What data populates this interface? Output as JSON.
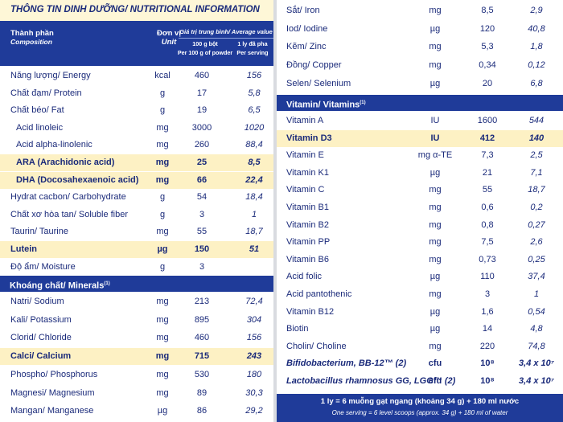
{
  "left": {
    "title": "THÔNG TIN DINH DƯỠNG/ NUTRITIONAL INFORMATION",
    "header": {
      "composition_vi": "Thành phần",
      "composition_en": "Composition",
      "unit_vi": "Đơn vị",
      "unit_en": "Unit",
      "average": "Giá trị trung bình/ Average value",
      "col1_vi": "100 g bột",
      "col1_en": "Per 100 g of powder",
      "col2_vi": "1 ly đã pha",
      "col2_en": "Per serving"
    },
    "rows": [
      {
        "name": "Năng lượng/ Energy",
        "unit": "kcal",
        "per100": "460",
        "serving": "156"
      },
      {
        "name": "Chất đạm/ Protein",
        "unit": "g",
        "per100": "17",
        "serving": "5,8"
      },
      {
        "name": "Chất béo/ Fat",
        "unit": "g",
        "per100": "19",
        "serving": "6,5"
      },
      {
        "name": "Acid linoleic",
        "unit": "mg",
        "per100": "3000",
        "serving": "1020"
      },
      {
        "name": "Acid alpha-linolenic",
        "unit": "mg",
        "per100": "260",
        "serving": "88,4"
      },
      {
        "name": "ARA (Arachidonic acid)",
        "unit": "mg",
        "per100": "25",
        "serving": "8,5"
      },
      {
        "name": "DHA (Docosahexaenoic acid)",
        "unit": "mg",
        "per100": "66",
        "serving": "22,4"
      },
      {
        "name": "Hydrat cacbon/ Carbohydrate",
        "unit": "g",
        "per100": "54",
        "serving": "18,4"
      },
      {
        "name": "Chất xơ hòa tan/ Soluble fiber",
        "unit": "g",
        "per100": "3",
        "serving": "1"
      },
      {
        "name": "Taurin/ Taurine",
        "unit": "mg",
        "per100": "55",
        "serving": "18,7"
      },
      {
        "name": "Lutein",
        "unit": "µg",
        "per100": "150",
        "serving": "51"
      },
      {
        "name": "Độ ẩm/ Moisture",
        "unit": "g",
        "per100": "3",
        "serving": ""
      }
    ],
    "minerals_title": "Khoáng chất/ Minerals",
    "minerals_note": "(1)",
    "minerals": [
      {
        "name": "Natri/ Sodium",
        "unit": "mg",
        "per100": "213",
        "serving": "72,4"
      },
      {
        "name": "Kali/ Potassium",
        "unit": "mg",
        "per100": "895",
        "serving": "304"
      },
      {
        "name": "Clorid/ Chloride",
        "unit": "mg",
        "per100": "460",
        "serving": "156"
      },
      {
        "name": "Calci/ Calcium",
        "unit": "mg",
        "per100": "715",
        "serving": "243"
      },
      {
        "name": "Phospho/ Phosphorus",
        "unit": "mg",
        "per100": "530",
        "serving": "180"
      },
      {
        "name": "Magnesi/ Magnesium",
        "unit": "mg",
        "per100": "89",
        "serving": "30,3"
      },
      {
        "name": "Mangan/ Manganese",
        "unit": "µg",
        "per100": "86",
        "serving": "29,2"
      }
    ]
  },
  "right": {
    "rows_top": [
      {
        "name": "Sắt/ Iron",
        "unit": "mg",
        "per100": "8,5",
        "serving": "2,9"
      },
      {
        "name": "Iod/ Iodine",
        "unit": "µg",
        "per100": "120",
        "serving": "40,8"
      },
      {
        "name": "Kẽm/ Zinc",
        "unit": "mg",
        "per100": "5,3",
        "serving": "1,8"
      },
      {
        "name": "Đồng/ Copper",
        "unit": "mg",
        "per100": "0,34",
        "serving": "0,12"
      },
      {
        "name": "Selen/ Selenium",
        "unit": "µg",
        "per100": "20",
        "serving": "6,8"
      }
    ],
    "vitamins_title": "Vitamin/ Vitamins",
    "vitamins_note": "(1)",
    "vitamins": [
      {
        "name": "Vitamin A",
        "unit": "IU",
        "per100": "1600",
        "serving": "544"
      },
      {
        "name": "Vitamin D3",
        "unit": "IU",
        "per100": "412",
        "serving": "140"
      },
      {
        "name": "Vitamin E",
        "unit": "mg α-TE",
        "per100": "7,3",
        "serving": "2,5"
      },
      {
        "name": "Vitamin K1",
        "unit": "µg",
        "per100": "21",
        "serving": "7,1"
      },
      {
        "name": "Vitamin C",
        "unit": "mg",
        "per100": "55",
        "serving": "18,7"
      },
      {
        "name": "Vitamin B1",
        "unit": "mg",
        "per100": "0,6",
        "serving": "0,2"
      },
      {
        "name": "Vitamin B2",
        "unit": "mg",
        "per100": "0,8",
        "serving": "0,27"
      },
      {
        "name": "Vitamin PP",
        "unit": "mg",
        "per100": "7,5",
        "serving": "2,6"
      },
      {
        "name": "Vitamin B6",
        "unit": "mg",
        "per100": "0,73",
        "serving": "0,25"
      },
      {
        "name": "Acid folic",
        "unit": "µg",
        "per100": "110",
        "serving": "37,4"
      },
      {
        "name": "Acid pantothenic",
        "unit": "mg",
        "per100": "3",
        "serving": "1"
      },
      {
        "name": "Vitamin B12",
        "unit": "µg",
        "per100": "1,6",
        "serving": "0,54"
      },
      {
        "name": "Biotin",
        "unit": "µg",
        "per100": "14",
        "serving": "4,8"
      },
      {
        "name": "Cholin/ Choline",
        "unit": "mg",
        "per100": "220",
        "serving": "74,8"
      },
      {
        "name": "Bifidobacterium, BB-12™ (2)",
        "unit": "cfu",
        "per100": "10⁸",
        "serving": "3,4 x 10⁷"
      },
      {
        "name": "Lactobacillus rhamnosus GG, LGG™ (2)",
        "unit": "cfu",
        "per100": "10⁸",
        "serving": "3,4 x 10⁷"
      }
    ],
    "footer_vi": "1 ly = 6 muỗng gạt ngang (khoảng 34 g) + 180 ml nước",
    "footer_en": "One serving = 6 level scoops (approx. 34 g) + 180 ml of water"
  },
  "colors": {
    "header_blue": "#1f3b99",
    "text_navy": "#1a2a7a",
    "highlight_cream": "#fdf1c4",
    "title_cream": "#fef7d7"
  }
}
